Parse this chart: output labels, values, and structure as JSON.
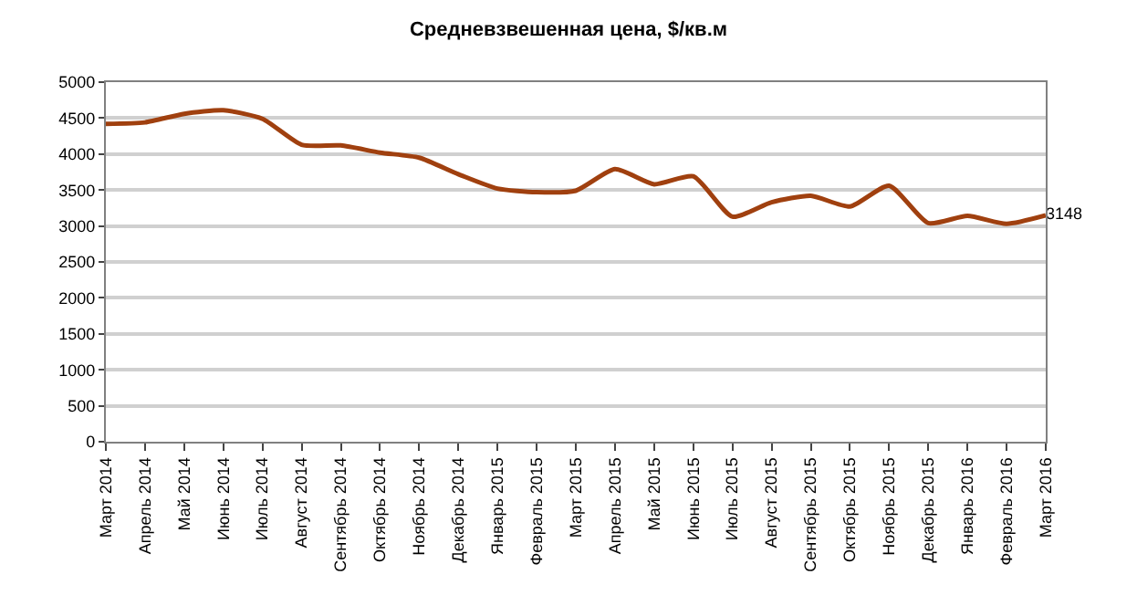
{
  "chart_data": {
    "type": "line",
    "title": "Средневзвешенная цена, $/кв.м",
    "categories": [
      "Март 2014",
      "Апрель 2014",
      "Май 2014",
      "Июнь 2014",
      "Июль 2014",
      "Август 2014",
      "Сентябрь 2014",
      "Октябрь 2014",
      "Ноябрь 2014",
      "Декабрь 2014",
      "Январь 2015",
      "Февраль 2015",
      "Март 2015",
      "Апрель 2015",
      "Май 2015",
      "Июнь 2015",
      "Июль 2015",
      "Август 2015",
      "Сентябрь 2015",
      "Октябрь 2015",
      "Ноябрь 2015",
      "Декабрь 2015",
      "Январь 2016",
      "Февраль 2016",
      "Март 2016"
    ],
    "series": [
      {
        "color": "#a0400f",
        "values": [
          4420,
          4440,
          4560,
          4610,
          4490,
          4130,
          4120,
          4020,
          3950,
          3720,
          3520,
          3470,
          3490,
          3790,
          3580,
          3690,
          3130,
          3330,
          3420,
          3270,
          3560,
          3040,
          3140,
          3030,
          3148
        ],
        "value_labels": [
          null,
          null,
          null,
          null,
          null,
          null,
          null,
          null,
          null,
          null,
          null,
          null,
          null,
          null,
          null,
          null,
          null,
          null,
          null,
          null,
          null,
          null,
          null,
          null,
          "3148"
        ]
      }
    ],
    "ylim": [
      0,
      5000
    ],
    "yticks": [
      0,
      500,
      1000,
      1500,
      2000,
      2500,
      3000,
      3500,
      4000,
      4500,
      5000
    ],
    "grid": "y",
    "legend": false,
    "marker": "none",
    "line_style": "solid"
  }
}
